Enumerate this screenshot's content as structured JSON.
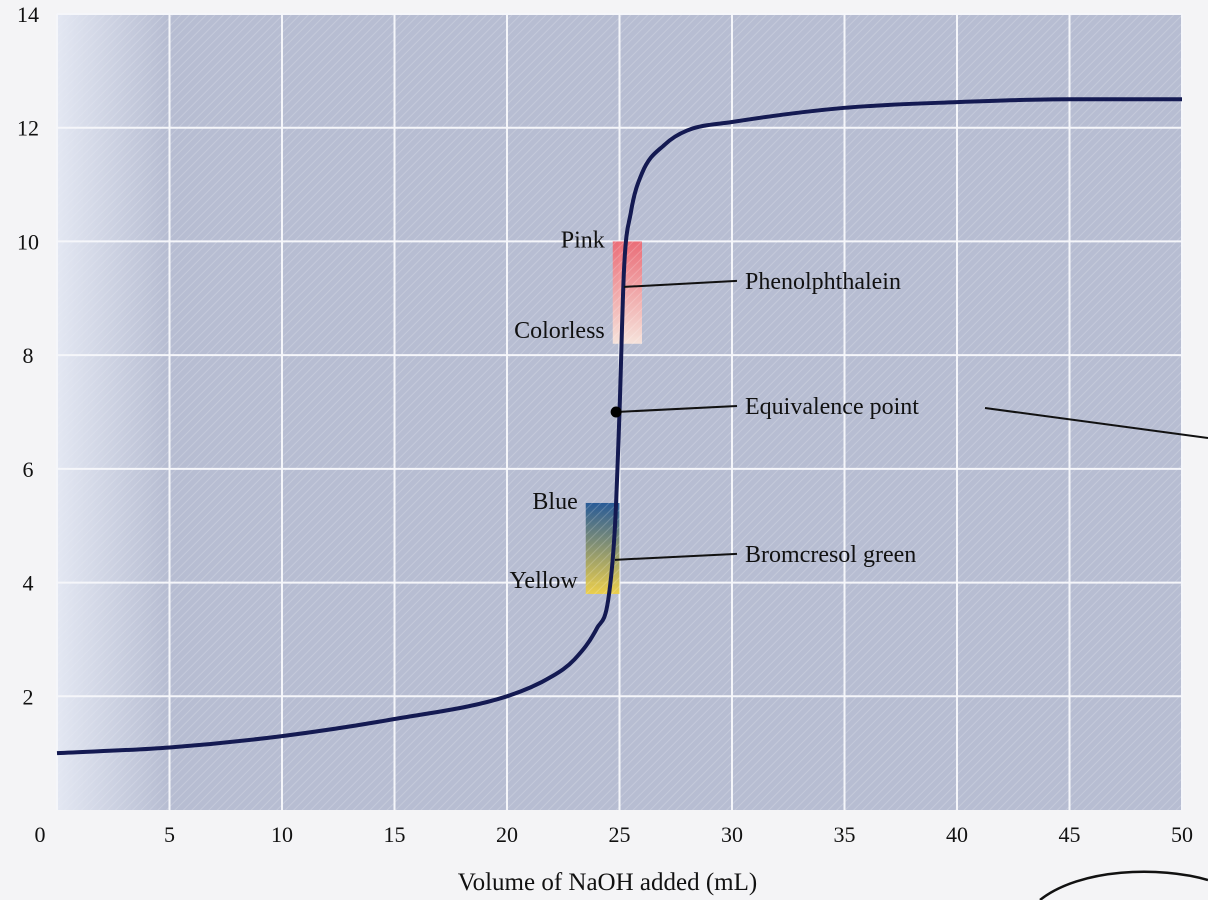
{
  "chart_data": {
    "type": "line",
    "title": "",
    "xlabel": "Volume of NaOH added (mL)",
    "ylabel": "",
    "xlim": [
      0,
      50
    ],
    "ylim": [
      0,
      14
    ],
    "x_ticks": [
      "0",
      "5",
      "10",
      "15",
      "20",
      "25",
      "30",
      "35",
      "40",
      "45",
      "50"
    ],
    "y_ticks": [
      "2",
      "4",
      "6",
      "8",
      "10",
      "12",
      "14"
    ],
    "grid": true,
    "series": [
      {
        "x": [
          0,
          5,
          10,
          15,
          20,
          22,
          23,
          24,
          24.5,
          24.8,
          25,
          25.2,
          25.5,
          26,
          27,
          28,
          30,
          35,
          40,
          45,
          50
        ],
        "y": [
          1.0,
          1.1,
          1.3,
          1.6,
          2.0,
          2.35,
          2.65,
          3.2,
          3.7,
          5.0,
          7.0,
          9.5,
          10.5,
          11.2,
          11.7,
          11.95,
          12.1,
          12.35,
          12.45,
          12.5,
          12.5
        ],
        "color": "#141a52"
      }
    ],
    "equivalence_point": {
      "x": 24.85,
      "y": 7.0
    },
    "indicators": [
      {
        "name": "Phenolphthalein",
        "x_range": [
          24.7,
          26.0
        ],
        "y_range": [
          8.2,
          10.0
        ],
        "top_label": "Pink",
        "bottom_label": "Colorless",
        "top_color": "#ee6670",
        "bottom_color": "#fbe6dc"
      },
      {
        "name": "Bromcresol green",
        "x_range": [
          23.5,
          25.0
        ],
        "y_range": [
          3.8,
          5.4
        ],
        "top_label": "Blue",
        "bottom_label": "Yellow",
        "top_color": "#1c5292",
        "bottom_color": "#f0d040"
      }
    ],
    "annotations": [
      {
        "text": "Phenolphthalein",
        "x": 25.2,
        "y": 9.2
      },
      {
        "text": "Equivalence point",
        "x": 24.85,
        "y": 7.0
      },
      {
        "text": "Bromcresol green",
        "x": 24.8,
        "y": 4.4
      }
    ],
    "colors": {
      "plot_background": "#b7bdd2",
      "plot_background_light": "#cfd4e6",
      "grid": "#f5f6fa",
      "curve": "#141a52"
    }
  }
}
